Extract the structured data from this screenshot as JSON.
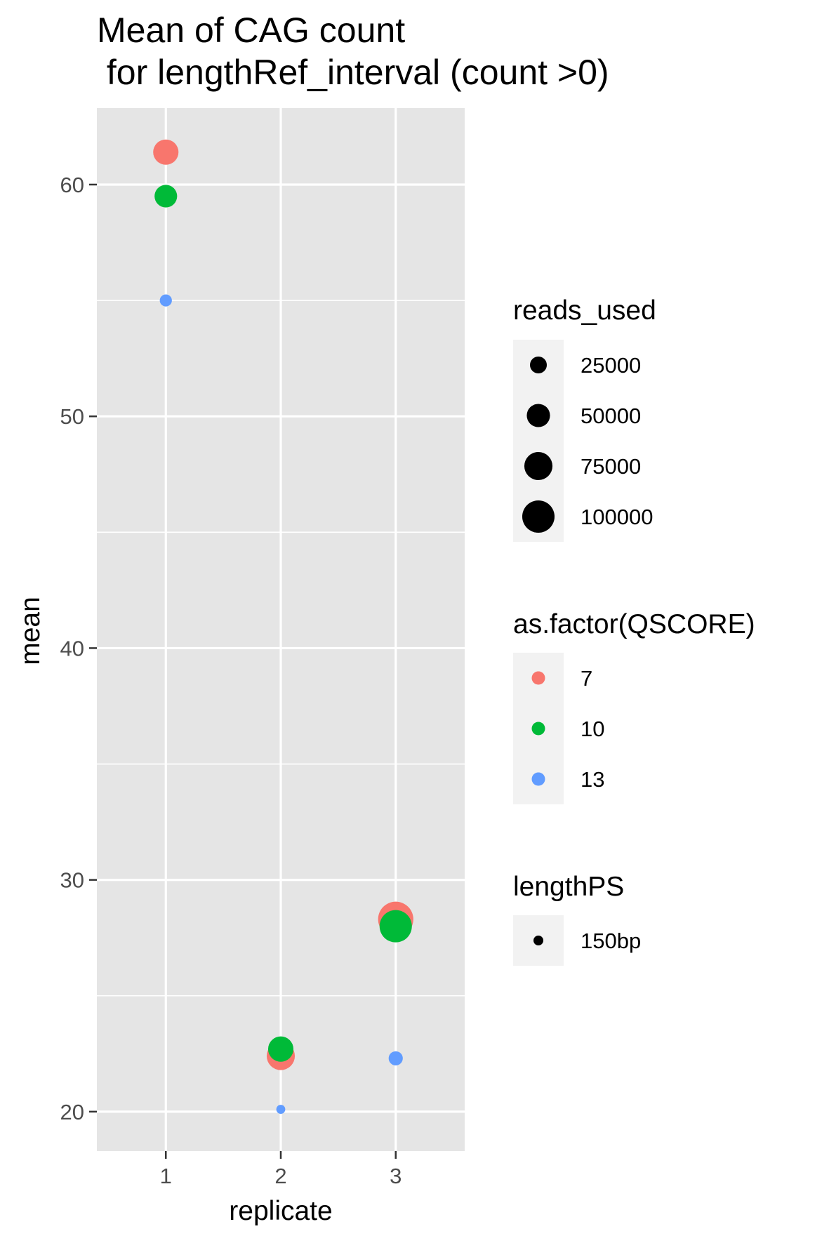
{
  "chart_data": {
    "type": "scatter",
    "title_line1": "Mean of CAG count",
    "title_line2": " for lengthRef_interval (count >0)",
    "xlabel": "replicate",
    "ylabel": "mean",
    "x_ticks": [
      "1",
      "2",
      "3"
    ],
    "y_ticks": [
      "20",
      "30",
      "40",
      "50",
      "60"
    ],
    "xlim": [
      0.4,
      3.6
    ],
    "ylim": [
      18.3,
      63.3
    ],
    "grid": true,
    "background": "#e5e5e5",
    "series": [
      {
        "name": "7",
        "color": "#f8766d",
        "points": [
          {
            "x": 1,
            "y": 61.4,
            "reads_used": 60000
          },
          {
            "x": 2,
            "y": 22.4,
            "reads_used": 75000
          },
          {
            "x": 3,
            "y": 28.3,
            "reads_used": 120000
          }
        ]
      },
      {
        "name": "10",
        "color": "#00ba38",
        "points": [
          {
            "x": 1,
            "y": 59.5,
            "reads_used": 47000
          },
          {
            "x": 2,
            "y": 22.7,
            "reads_used": 60000
          },
          {
            "x": 3,
            "y": 28.0,
            "reads_used": 100000
          }
        ]
      },
      {
        "name": "13",
        "color": "#619cff",
        "points": [
          {
            "x": 1,
            "y": 55.0,
            "reads_used": 12000
          },
          {
            "x": 2,
            "y": 20.1,
            "reads_used": 6000
          },
          {
            "x": 3,
            "y": 22.3,
            "reads_used": 17000
          }
        ]
      }
    ],
    "legends": {
      "size": {
        "title": "reads_used",
        "items": [
          {
            "label": "25000",
            "value": 25000
          },
          {
            "label": "50000",
            "value": 50000
          },
          {
            "label": "75000",
            "value": 75000
          },
          {
            "label": "100000",
            "value": 100000
          }
        ]
      },
      "color": {
        "title": "as.factor(QSCORE)",
        "items": [
          {
            "label": "7",
            "color": "#f8766d"
          },
          {
            "label": "10",
            "color": "#00ba38"
          },
          {
            "label": "13",
            "color": "#619cff"
          }
        ]
      },
      "shape": {
        "title": "lengthPS",
        "items": [
          {
            "label": "150bp"
          }
        ]
      }
    }
  }
}
